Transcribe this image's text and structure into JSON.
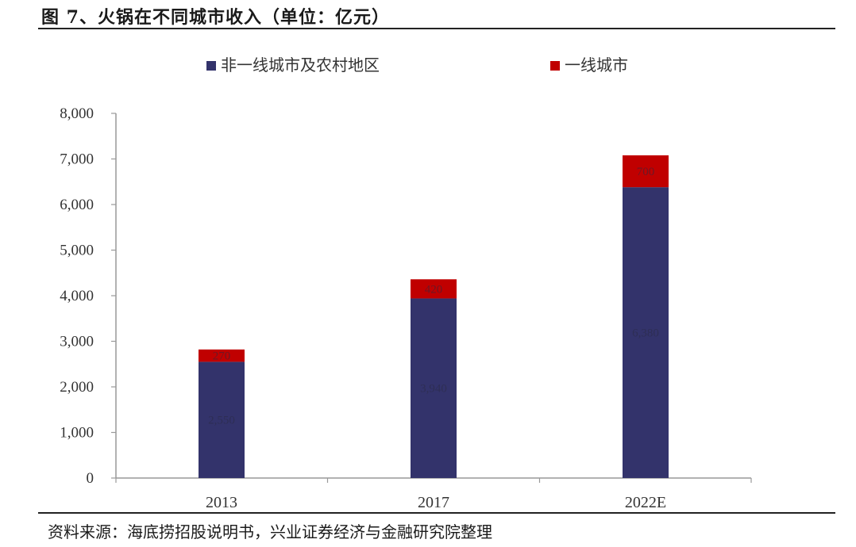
{
  "title": "图 7、火锅在不同城市收入（单位：亿元）",
  "source": "资料来源：海底捞招股说明书，兴业证券经济与金融研究院整理",
  "chart_data": {
    "type": "bar",
    "stacked": true,
    "categories": [
      "2013",
      "2017",
      "2022E"
    ],
    "series": [
      {
        "name": "非一线城市及农村地区",
        "color": "#33336b",
        "values": [
          2550,
          3940,
          6380
        ],
        "labels": [
          "2,550",
          "3,940",
          "6,380"
        ]
      },
      {
        "name": "一线城市",
        "color": "#c00000",
        "values": [
          270,
          420,
          700
        ],
        "labels": [
          "270",
          "420",
          "700"
        ]
      }
    ],
    "ylim": [
      0,
      8000
    ],
    "yticks": [
      "0",
      "1,000",
      "2,000",
      "3,000",
      "4,000",
      "5,000",
      "6,000",
      "7,000",
      "8,000"
    ],
    "ytick_values": [
      0,
      1000,
      2000,
      3000,
      4000,
      5000,
      6000,
      7000,
      8000
    ],
    "legend_position": "top",
    "grid": false
  }
}
